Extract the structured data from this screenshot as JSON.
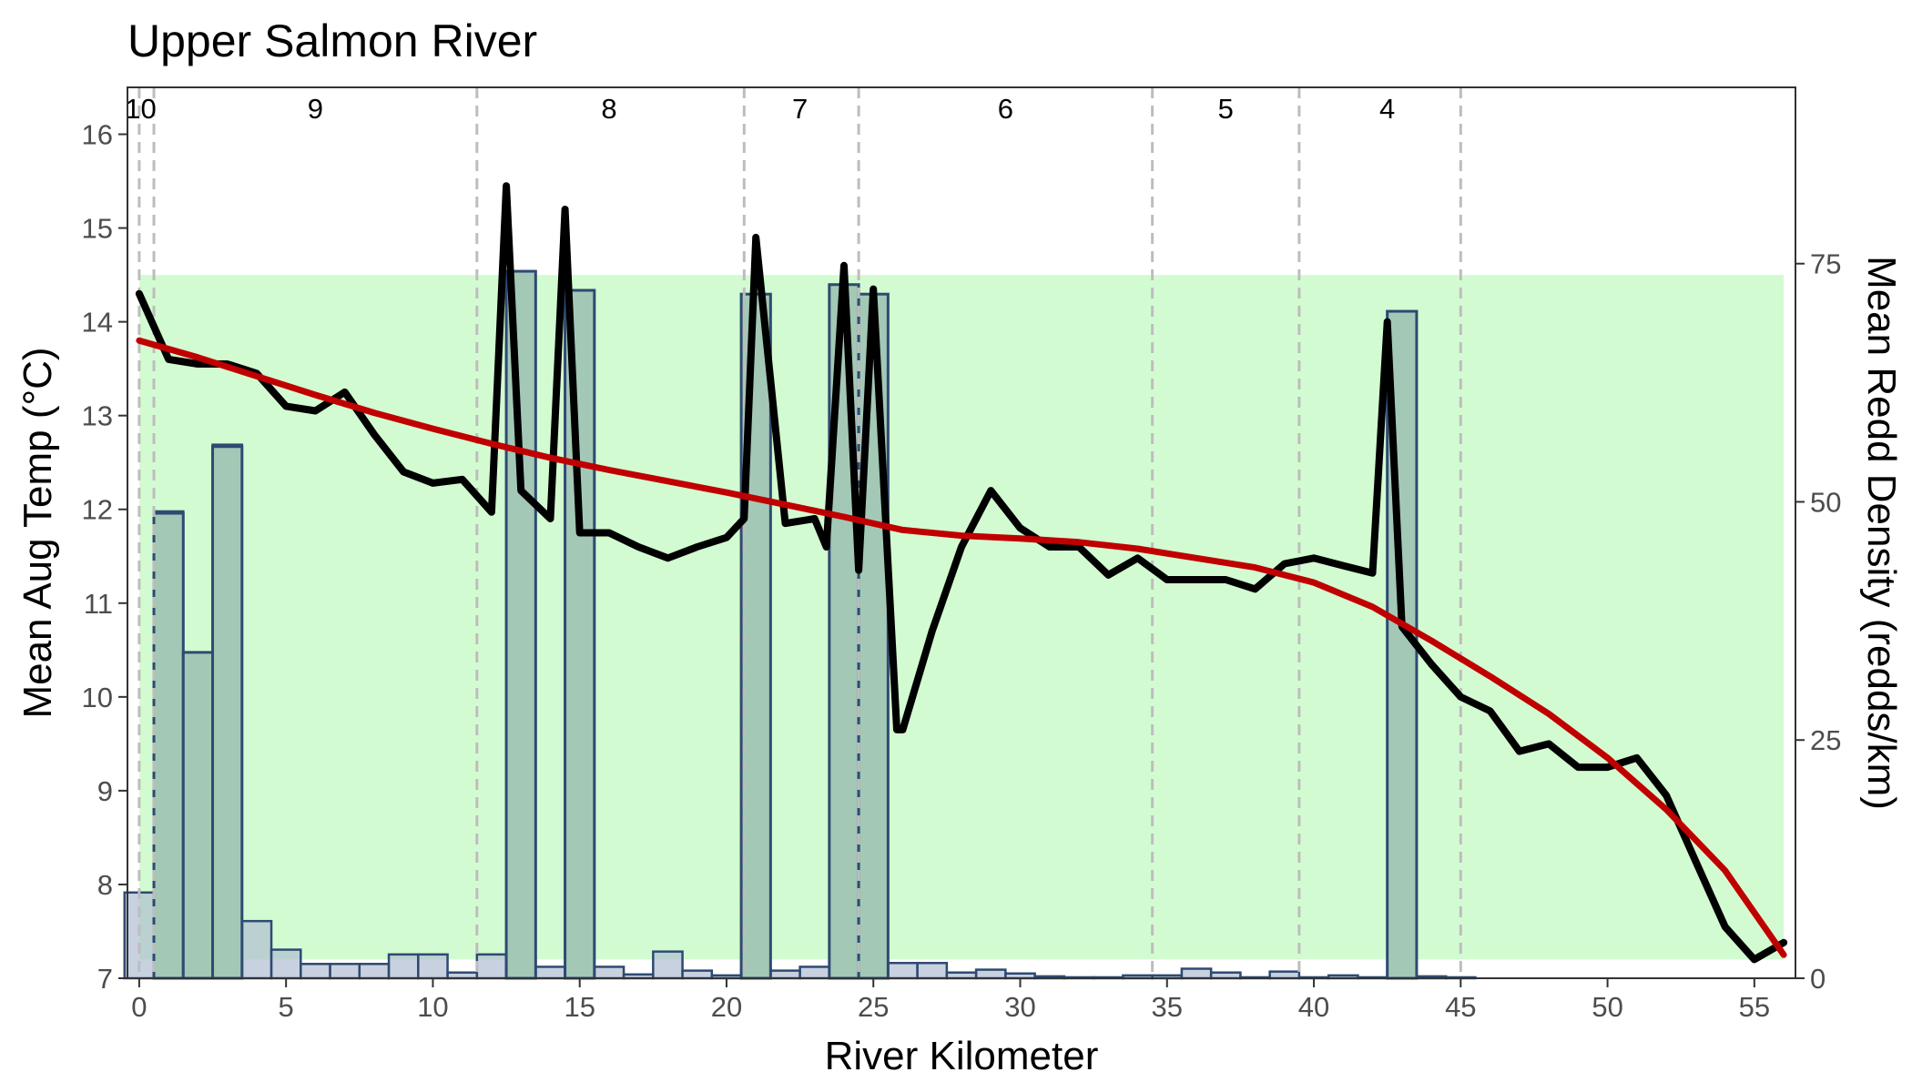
{
  "chart_data": {
    "type": "bar",
    "title": "Upper Salmon River",
    "xlabel": "River Kilometer",
    "ylabel": "Mean Aug Temp (°C)",
    "y2label": "Mean Redd Density (redds/km)",
    "xlim": [
      -0.4,
      56.4
    ],
    "ylim": [
      7,
      16.5
    ],
    "y2lim": [
      0,
      93.5
    ],
    "x_ticks": [
      0,
      5,
      10,
      15,
      20,
      25,
      30,
      35,
      40,
      45,
      50,
      55
    ],
    "y_ticks": [
      7,
      8,
      9,
      10,
      11,
      12,
      13,
      14,
      15,
      16
    ],
    "y2_ticks": [
      0,
      25,
      50,
      75
    ],
    "grid": false,
    "optimal_band": {
      "temp_min": 7.2,
      "temp_max": 14.5,
      "x_min": 0,
      "x_max": 56,
      "color": "#d3fbd1"
    },
    "reach_boundaries": [
      0,
      0.5,
      11.5,
      20.6,
      24.5,
      34.5,
      39.5,
      45
    ],
    "reach_labels": [
      {
        "label": "10",
        "x": 0.05
      },
      {
        "label": "9",
        "x": 6
      },
      {
        "label": "8",
        "x": 16
      },
      {
        "label": "7",
        "x": 22.5
      },
      {
        "label": "6",
        "x": 29.5
      },
      {
        "label": "5",
        "x": 37
      },
      {
        "label": "4",
        "x": 42.5
      }
    ],
    "bars": {
      "name": "Mean Redd Density",
      "axis": "right",
      "width": 1,
      "x": [
        0,
        1,
        2,
        3,
        4,
        5,
        6,
        7,
        8,
        9,
        10,
        11,
        12,
        13,
        14,
        15,
        16,
        17,
        18,
        19,
        20,
        21,
        22,
        23,
        24,
        25,
        26,
        27,
        28,
        29,
        30,
        31,
        32,
        33,
        34,
        35,
        36,
        37,
        38,
        39,
        40,
        41,
        42,
        43,
        44,
        45,
        46,
        47,
        48,
        49,
        50,
        51,
        52,
        53,
        54,
        55
      ],
      "values": [
        9,
        49,
        34,
        56,
        6,
        3,
        1.5,
        1.5,
        1.5,
        2.5,
        2.5,
        0.6,
        2.5,
        2.2,
        1.2,
        1.2,
        1.2,
        0.4,
        2.8,
        0.8,
        0.3,
        1,
        0.8,
        1.2,
        1.6,
        1,
        1.6,
        1.6,
        0.6,
        0.9,
        0.5,
        0.2,
        0.1,
        0.1,
        0.3,
        0.3,
        1,
        0.6,
        0.1,
        0.7,
        0.1,
        0.3,
        0.1,
        0.2,
        0.2,
        0.1,
        0,
        0,
        0,
        0,
        0,
        0,
        0,
        0,
        0,
        0
      ]
    },
    "high_bars": {
      "name": "Mean Redd Density (high)",
      "axis": "right",
      "width": 1,
      "x": [
        1,
        2,
        3,
        13,
        15,
        21,
        24,
        25,
        43
      ],
      "values": [
        48.8,
        34.2,
        55.8,
        74.2,
        72.2,
        71.8,
        72.8,
        71.8,
        70
      ]
    },
    "series": [
      {
        "name": "Mean Aug Temp",
        "axis": "left",
        "color": "#000000",
        "x": [
          0,
          1,
          2,
          3,
          4,
          5,
          6,
          7,
          8,
          9,
          10,
          11,
          12,
          12.5,
          13,
          14,
          14.5,
          15,
          16,
          17,
          18,
          19,
          20,
          20.6,
          21,
          22,
          23,
          23.4,
          24,
          24.5,
          25,
          25.8,
          26,
          27,
          28,
          29,
          30,
          31,
          32,
          33,
          34,
          35,
          36,
          37,
          38,
          39,
          40,
          41,
          42,
          42.5,
          43,
          44,
          45,
          46,
          47,
          48,
          49,
          50,
          51,
          52,
          53,
          54,
          55,
          56
        ],
        "values": [
          14.3,
          13.6,
          13.55,
          13.55,
          13.45,
          13.1,
          13.05,
          13.25,
          12.8,
          12.4,
          12.28,
          12.32,
          11.97,
          15.45,
          12.2,
          11.9,
          15.2,
          11.75,
          11.75,
          11.6,
          11.48,
          11.6,
          11.7,
          11.9,
          14.9,
          11.85,
          11.9,
          11.6,
          14.6,
          11.35,
          14.35,
          9.65,
          9.65,
          10.7,
          11.6,
          12.2,
          11.8,
          11.6,
          11.6,
          11.3,
          11.48,
          11.25,
          11.25,
          11.25,
          11.15,
          11.42,
          11.48,
          11.4,
          11.32,
          14.0,
          10.75,
          10.35,
          10.0,
          9.85,
          9.42,
          9.5,
          9.25,
          9.25,
          9.35,
          8.95,
          8.25,
          7.55,
          7.2,
          7.38
        ]
      },
      {
        "name": "Smoothed Trend",
        "axis": "left",
        "color": "#c00000",
        "x": [
          0,
          2,
          4,
          6,
          8,
          10,
          12,
          14,
          16,
          18,
          20,
          22,
          24,
          26,
          28,
          30,
          32,
          34,
          36,
          38,
          40,
          42,
          44,
          46,
          48,
          50,
          52,
          54,
          56
        ],
        "values": [
          13.8,
          13.62,
          13.42,
          13.22,
          13.03,
          12.86,
          12.7,
          12.55,
          12.42,
          12.3,
          12.18,
          12.05,
          11.92,
          11.78,
          11.72,
          11.69,
          11.65,
          11.58,
          11.48,
          11.38,
          11.22,
          10.96,
          10.6,
          10.22,
          9.82,
          9.35,
          8.8,
          8.15,
          7.25
        ]
      }
    ]
  }
}
